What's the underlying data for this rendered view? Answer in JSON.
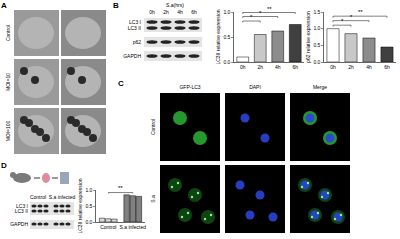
{
  "figure": {
    "panel_labels": [
      "A",
      "B",
      "C",
      "D"
    ],
    "A": {
      "rows": [
        "Control",
        "MOI=10",
        "MOI=100"
      ]
    },
    "B": {
      "blot": {
        "header": "S.a(hrs)",
        "lanes": [
          "0h",
          "2h",
          "4h",
          "6h"
        ],
        "rows": [
          "LC3 I",
          "LC3 II",
          "p62",
          "GAPDH"
        ]
      }
    },
    "C": {
      "columns": [
        "GFP-LC3",
        "DAPI",
        "Merge"
      ],
      "rows": [
        "Control",
        "S.a"
      ]
    },
    "D": {
      "blot": {
        "groups": [
          "Control",
          "S.a infected"
        ],
        "rows": [
          "LC3 I",
          "LC3 II",
          "GAPDH"
        ]
      }
    }
  },
  "chart_data": [
    {
      "type": "bar",
      "categories": [
        "0h",
        "2h",
        "4h",
        "6h"
      ],
      "values": [
        0.1,
        0.55,
        0.62,
        0.75
      ],
      "colors": [
        "#ffffff",
        "#c8c8c8",
        "#8c8c8c",
        "#404040"
      ],
      "ylabel": "LC3II relative expression",
      "ylim": [
        0,
        1
      ],
      "yticks": [
        {
          "value": 0,
          "label": "0.0"
        },
        {
          "value": 0.5,
          "label": "0.5"
        },
        {
          "value": 1,
          "label": "1.0"
        }
      ],
      "annotations": [
        {
          "from": "0h",
          "to": "2h",
          "text": "*"
        },
        {
          "from": "0h",
          "to": "4h",
          "text": "*"
        },
        {
          "from": "0h",
          "to": "6h",
          "text": "**"
        }
      ]
    },
    {
      "type": "bar",
      "categories": [
        "0h",
        "2h",
        "4h",
        "6h"
      ],
      "values": [
        1.0,
        0.85,
        0.72,
        0.45
      ],
      "colors": [
        "#ffffff",
        "#c8c8c8",
        "#8c8c8c",
        "#404040"
      ],
      "ylabel": "p62 relative expression",
      "ylim": [
        0,
        1.5
      ],
      "yticks": [
        {
          "value": 0,
          "label": "0.0"
        },
        {
          "value": 0.5,
          "label": "0.5"
        },
        {
          "value": 1,
          "label": "1.0"
        },
        {
          "value": 1.5,
          "label": "1.5"
        }
      ],
      "annotations": [
        {
          "from": "0h",
          "to": "2h",
          "text": "*"
        },
        {
          "from": "0h",
          "to": "4h",
          "text": "*"
        },
        {
          "from": "0h",
          "to": "6h",
          "text": "**"
        }
      ]
    },
    {
      "type": "bar",
      "categories": [
        "Control",
        "S.a infected"
      ],
      "series": [
        {
          "colors": [
            "#d9d9d9",
            "#808080"
          ],
          "values": [
            0.12,
            0.85
          ]
        },
        {
          "colors": [
            "#d9d9d9",
            "#808080"
          ],
          "values": [
            0.1,
            0.82
          ]
        },
        {
          "colors": [
            "#d9d9d9",
            "#808080"
          ],
          "values": [
            0.09,
            0.8
          ]
        }
      ],
      "ylabel": "LC3II relative expression",
      "ylim": [
        0,
        1
      ],
      "yticks": [
        {
          "value": 0,
          "label": "0.0"
        },
        {
          "value": 0.5,
          "label": "0.5"
        },
        {
          "value": 1,
          "label": "1.0"
        }
      ],
      "annotations": [
        {
          "from": "Control",
          "to": "S.a infected",
          "text": "**"
        }
      ]
    }
  ]
}
